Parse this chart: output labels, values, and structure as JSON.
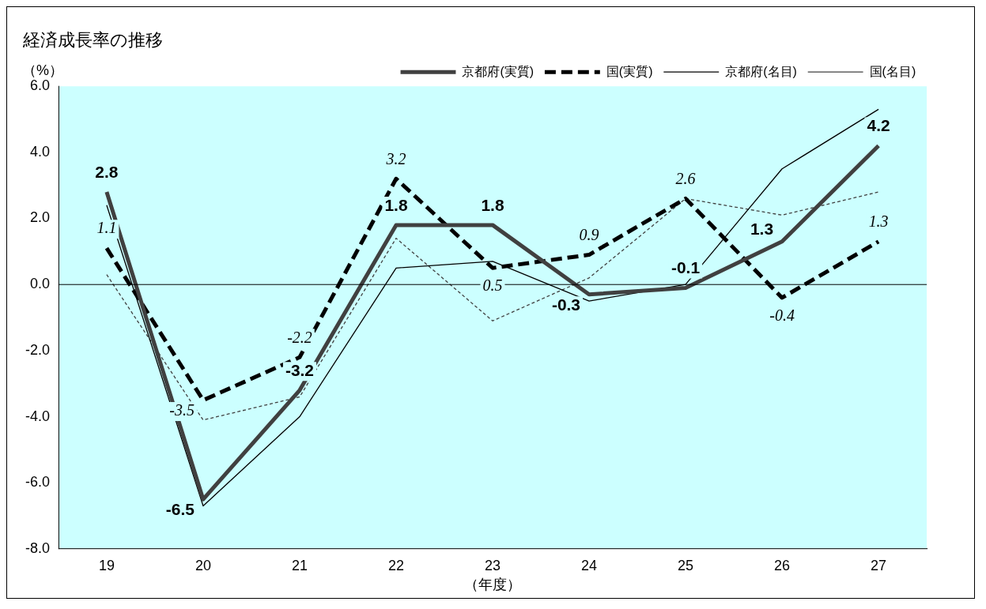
{
  "chart_data": {
    "type": "line",
    "title": "経済成長率の推移",
    "xlabel": "（年度）",
    "ylabel": "（%）",
    "categories": [
      "19",
      "20",
      "21",
      "22",
      "23",
      "24",
      "25",
      "26",
      "27"
    ],
    "series": [
      {
        "name": "京都府(実質)",
        "color": "#404040",
        "line_style": "solid",
        "values": [
          2.8,
          -6.5,
          -3.2,
          1.8,
          1.8,
          -0.3,
          -0.1,
          1.3,
          4.2
        ],
        "value_labels": [
          "2.8",
          "-6.5",
          "-3.2",
          "1.8",
          "1.8",
          "-0.3",
          "-0.1",
          "1.3",
          "4.2"
        ]
      },
      {
        "name": "国(実質)",
        "color": "#000000",
        "line_style": "dashed",
        "values": [
          1.1,
          -3.5,
          -2.2,
          3.2,
          0.5,
          0.9,
          2.6,
          -0.4,
          1.3
        ],
        "value_labels": [
          "1.1",
          "-3.5",
          "-2.2",
          "3.2",
          "0.5",
          "0.9",
          "2.6",
          "-0.4",
          "1.3"
        ]
      },
      {
        "name": "京都府(名目)",
        "color": "#000000",
        "line_style": "solid",
        "values": [
          2.4,
          -6.7,
          -4.0,
          0.5,
          0.7,
          -0.5,
          0.0,
          3.5,
          5.3
        ]
      },
      {
        "name": "国(名目)",
        "color": "#404040",
        "line_style": "dotted",
        "values": [
          0.3,
          -4.1,
          -3.4,
          1.4,
          -1.1,
          0.2,
          2.6,
          2.1,
          2.8
        ]
      }
    ],
    "ylim": [
      -8,
      6
    ],
    "yticks": [
      {
        "value": -8,
        "label": "-8.0"
      },
      {
        "value": -6,
        "label": "-6.0"
      },
      {
        "value": -4,
        "label": "-4.0"
      },
      {
        "value": -2,
        "label": "-2.0"
      },
      {
        "value": 0,
        "label": "0.0"
      },
      {
        "value": 2,
        "label": "2.0"
      },
      {
        "value": 4,
        "label": "4.0"
      },
      {
        "value": 6,
        "label": "6.0"
      }
    ],
    "ref_lines": [
      {
        "axis": "y",
        "value": 0,
        "color": "#000000"
      }
    ],
    "grid": false,
    "legend": "top right",
    "marker": "none"
  }
}
